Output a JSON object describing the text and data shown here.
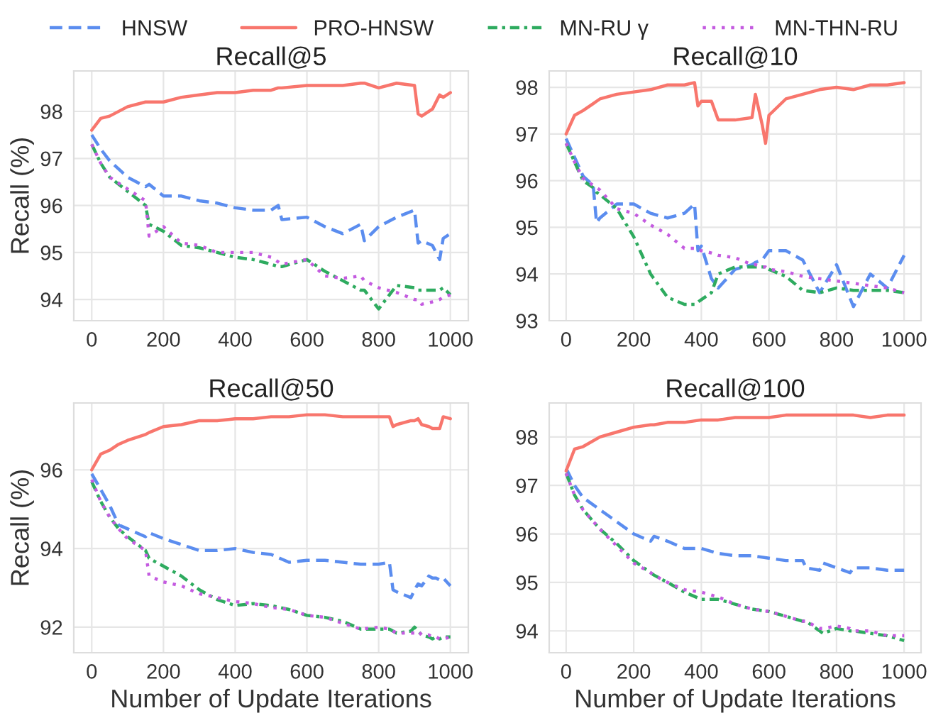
{
  "chart_data": [
    {
      "type": "line",
      "title": "Recall@5",
      "ylabel": "Recall (%)",
      "legend": "top",
      "grid": true,
      "tick_labels": true,
      "xlim": [
        -50,
        1050
      ],
      "xticks": [
        0,
        200,
        400,
        600,
        800,
        1000
      ],
      "ylim": [
        93.55,
        98.86
      ],
      "yticks": [
        94,
        95,
        96,
        97,
        98
      ],
      "x": [
        0,
        25,
        50,
        100,
        150,
        160,
        200,
        250,
        300,
        350,
        400,
        450,
        500,
        520,
        530,
        600,
        650,
        700,
        750,
        760,
        800,
        850,
        900,
        910,
        920,
        950,
        970,
        980,
        1000
      ],
      "series": [
        {
          "name": "HNSW",
          "color": "#5b8def",
          "line_style": "dashed",
          "values": [
            97.5,
            97.2,
            96.95,
            96.6,
            96.4,
            96.45,
            96.2,
            96.2,
            96.1,
            96.05,
            95.95,
            95.9,
            95.9,
            96.0,
            95.7,
            95.75,
            95.55,
            95.4,
            95.6,
            95.25,
            95.55,
            95.75,
            95.9,
            95.2,
            95.25,
            95.15,
            94.85,
            95.3,
            95.4
          ]
        },
        {
          "name": "PRO-HNSW",
          "color": "#f8766d",
          "line_style": "solid",
          "values": [
            97.6,
            97.85,
            97.9,
            98.1,
            98.2,
            98.2,
            98.2,
            98.3,
            98.35,
            98.4,
            98.4,
            98.45,
            98.45,
            98.5,
            98.5,
            98.55,
            98.55,
            98.55,
            98.6,
            98.6,
            98.5,
            98.6,
            98.55,
            97.95,
            97.9,
            98.05,
            98.35,
            98.3,
            98.4
          ]
        },
        {
          "name": "MN-RU γ",
          "color": "#2eab5f",
          "line_style": "dashdot",
          "values": [
            97.3,
            96.9,
            96.6,
            96.3,
            96.0,
            95.6,
            95.45,
            95.15,
            95.1,
            95.0,
            94.9,
            94.85,
            94.75,
            94.7,
            94.7,
            94.85,
            94.6,
            94.4,
            94.2,
            94.2,
            93.8,
            94.3,
            94.25,
            94.2,
            94.2,
            94.2,
            94.2,
            94.25,
            94.1
          ]
        },
        {
          "name": "MN-THN-RU",
          "color": "#c45be0",
          "line_style": "dotted",
          "values": [
            97.3,
            96.9,
            96.6,
            96.35,
            96.1,
            95.35,
            95.55,
            95.2,
            95.15,
            95.0,
            95.0,
            95.0,
            94.9,
            94.8,
            94.75,
            94.85,
            94.5,
            94.45,
            94.5,
            94.4,
            94.25,
            94.15,
            94.0,
            94.0,
            93.9,
            93.95,
            94.0,
            94.05,
            94.1
          ]
        }
      ]
    },
    {
      "type": "line",
      "title": "Recall@10",
      "grid": true,
      "xlim": [
        -50,
        1050
      ],
      "xticks": [
        0,
        200,
        400,
        600,
        800,
        1000
      ],
      "ylim": [
        93,
        98.35
      ],
      "yticks": [
        93,
        94,
        95,
        96,
        97,
        98
      ],
      "x": [
        0,
        25,
        50,
        80,
        90,
        100,
        150,
        200,
        250,
        300,
        350,
        380,
        390,
        400,
        430,
        450,
        500,
        550,
        560,
        580,
        590,
        600,
        650,
        700,
        750,
        800,
        850,
        900,
        950,
        1000
      ],
      "series": [
        {
          "name": "HNSW",
          "color": "#5b8def",
          "line_style": "dashed",
          "values": [
            96.9,
            96.5,
            96.1,
            95.9,
            95.1,
            95.2,
            95.5,
            95.5,
            95.3,
            95.2,
            95.3,
            95.5,
            94.5,
            94.6,
            93.9,
            93.7,
            94.1,
            94.2,
            94.25,
            94.3,
            94.4,
            94.5,
            94.5,
            94.3,
            93.6,
            94.2,
            93.3,
            94.0,
            93.7,
            94.4
          ]
        },
        {
          "name": "PRO-HNSW",
          "color": "#f8766d",
          "line_style": "solid",
          "values": [
            97.0,
            97.4,
            97.5,
            97.65,
            97.7,
            97.75,
            97.85,
            97.9,
            97.95,
            98.05,
            98.05,
            98.1,
            97.6,
            97.7,
            97.7,
            97.3,
            97.3,
            97.35,
            97.85,
            97.2,
            96.8,
            97.4,
            97.75,
            97.85,
            97.95,
            98.0,
            97.95,
            98.05,
            98.05,
            98.1
          ]
        },
        {
          "name": "MN-RU γ",
          "color": "#2eab5f",
          "line_style": "dashdot",
          "values": [
            96.8,
            96.4,
            96.0,
            95.85,
            95.75,
            95.7,
            95.4,
            94.8,
            94.0,
            93.5,
            93.35,
            93.35,
            93.4,
            93.45,
            93.6,
            94.0,
            94.15,
            94.15,
            94.15,
            94.15,
            94.15,
            94.1,
            93.95,
            93.65,
            93.6,
            93.7,
            93.65,
            93.65,
            93.65,
            93.6
          ]
        },
        {
          "name": "MN-THN-RU",
          "color": "#c45be0",
          "line_style": "dotted",
          "values": [
            96.8,
            96.4,
            96.05,
            95.9,
            95.85,
            95.8,
            95.4,
            95.3,
            95.05,
            94.85,
            94.55,
            94.55,
            94.5,
            94.5,
            94.45,
            94.4,
            94.35,
            94.2,
            94.2,
            94.15,
            94.15,
            94.1,
            94.05,
            93.95,
            93.9,
            93.85,
            93.8,
            93.75,
            93.7,
            93.6
          ]
        }
      ]
    },
    {
      "type": "line",
      "title": "Recall@50",
      "ylabel": "Recall (%)",
      "xlabel": "Number of Update Iterations",
      "grid": true,
      "xlim": [
        -50,
        1050
      ],
      "xticks": [
        0,
        200,
        400,
        600,
        800,
        1000
      ],
      "ylim": [
        91.35,
        97.7
      ],
      "yticks": [
        92,
        94,
        96
      ],
      "x": [
        0,
        25,
        50,
        75,
        100,
        150,
        160,
        200,
        250,
        300,
        350,
        400,
        450,
        500,
        550,
        600,
        650,
        700,
        750,
        800,
        830,
        840,
        850,
        890,
        900,
        910,
        920,
        940,
        950,
        960,
        970,
        980,
        1000
      ],
      "series": [
        {
          "name": "HNSW",
          "color": "#5b8def",
          "line_style": "dashed",
          "values": [
            95.9,
            95.5,
            95.1,
            94.6,
            94.5,
            94.3,
            94.4,
            94.25,
            94.1,
            93.95,
            93.95,
            94.0,
            93.9,
            93.85,
            93.65,
            93.7,
            93.7,
            93.65,
            93.6,
            93.6,
            93.65,
            92.95,
            92.9,
            92.75,
            92.95,
            93.1,
            93.05,
            93.3,
            93.25,
            93.25,
            93.2,
            93.25,
            93.05
          ]
        },
        {
          "name": "PRO-HNSW",
          "color": "#f8766d",
          "line_style": "solid",
          "values": [
            96.0,
            96.4,
            96.5,
            96.65,
            96.75,
            96.9,
            96.95,
            97.1,
            97.15,
            97.25,
            97.25,
            97.3,
            97.3,
            97.35,
            97.35,
            97.4,
            97.4,
            97.35,
            97.35,
            97.35,
            97.35,
            97.1,
            97.15,
            97.25,
            97.25,
            97.3,
            97.15,
            97.1,
            97.05,
            97.05,
            97.05,
            97.35,
            97.3
          ]
        },
        {
          "name": "MN-RU γ",
          "color": "#2eab5f",
          "line_style": "dashdot",
          "values": [
            95.7,
            95.2,
            94.8,
            94.5,
            94.3,
            93.95,
            93.75,
            93.55,
            93.3,
            92.95,
            92.7,
            92.55,
            92.6,
            92.55,
            92.45,
            92.3,
            92.25,
            92.15,
            91.95,
            91.95,
            91.95,
            91.9,
            91.85,
            91.9,
            92.0,
            91.9,
            91.8,
            91.75,
            91.7,
            91.75,
            91.7,
            91.75,
            91.75
          ]
        },
        {
          "name": "MN-THN-RU",
          "color": "#c45be0",
          "line_style": "dotted",
          "values": [
            95.75,
            95.2,
            94.8,
            94.5,
            94.25,
            93.95,
            93.3,
            93.15,
            93.05,
            92.85,
            92.75,
            92.65,
            92.6,
            92.5,
            92.45,
            92.3,
            92.25,
            92.1,
            91.95,
            92.0,
            91.95,
            91.9,
            91.85,
            91.85,
            91.85,
            91.9,
            91.8,
            91.8,
            91.75,
            91.75,
            91.7,
            91.7,
            91.75
          ]
        }
      ]
    },
    {
      "type": "line",
      "title": "Recall@100",
      "xlabel": "Number of Update Iterations",
      "grid": true,
      "xlim": [
        -50,
        1050
      ],
      "xticks": [
        0,
        200,
        400,
        600,
        800,
        1000
      ],
      "ylim": [
        93.55,
        98.7
      ],
      "yticks": [
        94,
        95,
        96,
        97,
        98
      ],
      "x": [
        0,
        25,
        50,
        100,
        150,
        200,
        250,
        260,
        300,
        350,
        400,
        450,
        500,
        550,
        600,
        650,
        700,
        710,
        750,
        760,
        800,
        840,
        850,
        900,
        950,
        1000
      ],
      "series": [
        {
          "name": "HNSW",
          "color": "#5b8def",
          "line_style": "dashed",
          "values": [
            97.35,
            97.0,
            96.75,
            96.5,
            96.25,
            96.0,
            95.85,
            95.95,
            95.85,
            95.7,
            95.7,
            95.6,
            95.55,
            95.55,
            95.5,
            95.45,
            95.45,
            95.3,
            95.25,
            95.4,
            95.3,
            95.2,
            95.3,
            95.3,
            95.25,
            95.25
          ]
        },
        {
          "name": "PRO-HNSW",
          "color": "#f8766d",
          "line_style": "solid",
          "values": [
            97.3,
            97.75,
            97.8,
            98.0,
            98.1,
            98.2,
            98.25,
            98.25,
            98.3,
            98.3,
            98.35,
            98.35,
            98.4,
            98.4,
            98.4,
            98.45,
            98.45,
            98.45,
            98.45,
            98.45,
            98.45,
            98.45,
            98.45,
            98.4,
            98.45,
            98.45
          ]
        },
        {
          "name": "MN-RU γ",
          "color": "#2eab5f",
          "line_style": "dashdot",
          "values": [
            97.25,
            96.8,
            96.5,
            96.1,
            95.8,
            95.45,
            95.2,
            95.15,
            95.0,
            94.8,
            94.65,
            94.65,
            94.55,
            94.45,
            94.4,
            94.3,
            94.2,
            94.2,
            94.0,
            93.95,
            94.05,
            94.0,
            94.0,
            93.95,
            93.9,
            93.8
          ]
        },
        {
          "name": "MN-THN-RU",
          "color": "#c45be0",
          "line_style": "dotted",
          "values": [
            97.25,
            96.8,
            96.5,
            96.1,
            95.75,
            95.4,
            95.2,
            95.15,
            95.0,
            94.85,
            94.8,
            94.7,
            94.55,
            94.45,
            94.4,
            94.3,
            94.2,
            94.2,
            94.05,
            94.05,
            94.1,
            94.05,
            94.0,
            94.0,
            93.9,
            93.9
          ]
        }
      ]
    }
  ]
}
